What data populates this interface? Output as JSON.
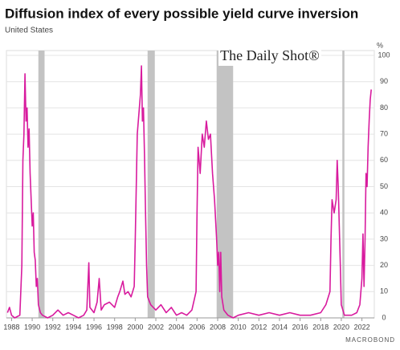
{
  "chart_data": {
    "type": "line",
    "title": "Diffusion index of every possible yield curve inversion",
    "subtitle": "United States",
    "y_unit": "%",
    "watermark": "The Daily Shot®",
    "source": "MACROBOND",
    "xlim": [
      1987.5,
      2023.2
    ],
    "xticks": [
      1988,
      1990,
      1992,
      1994,
      1996,
      1998,
      2000,
      2002,
      2004,
      2006,
      2008,
      2010,
      2012,
      2014,
      2016,
      2018,
      2020,
      2022
    ],
    "ylim": [
      0,
      100
    ],
    "yticks": [
      0,
      10,
      20,
      30,
      40,
      50,
      60,
      70,
      80,
      90,
      100
    ],
    "grid": true,
    "recessions": [
      [
        1990.6,
        1991.2
      ],
      [
        2001.2,
        2001.9
      ],
      [
        2007.9,
        2009.5
      ],
      [
        2020.1,
        2020.3
      ]
    ],
    "x": [
      1987.6,
      1987.8,
      1988,
      1988.3,
      1988.8,
      1989.0,
      1989.1,
      1989.2,
      1989.3,
      1989.4,
      1989.5,
      1989.6,
      1989.7,
      1989.8,
      1989.9,
      1990.0,
      1990.1,
      1990.2,
      1990.3,
      1990.4,
      1990.5,
      1990.6,
      1990.8,
      1991.0,
      1991.5,
      1992,
      1992.5,
      1993,
      1993.5,
      1994,
      1994.5,
      1995,
      1995.3,
      1995.5,
      1995.6,
      1996,
      1996.3,
      1996.5,
      1996.7,
      1997,
      1997.5,
      1998,
      1998.3,
      1998.5,
      1998.8,
      1999,
      1999.3,
      1999.6,
      1999.9,
      2000.0,
      2000.2,
      2000.4,
      2000.5,
      2000.6,
      2000.7,
      2000.8,
      2000.9,
      2001.0,
      2001.1,
      2001.2,
      2001.5,
      2002,
      2002.5,
      2003,
      2003.5,
      2004,
      2004.5,
      2005,
      2005.5,
      2005.9,
      2006.0,
      2006.1,
      2006.3,
      2006.5,
      2006.7,
      2006.9,
      2007.1,
      2007.3,
      2007.5,
      2007.7,
      2007.9,
      2008.0,
      2008.1,
      2008.2,
      2008.3,
      2008.4,
      2008.6,
      2009,
      2009.5,
      2010,
      2011,
      2012,
      2013,
      2014,
      2015,
      2016,
      2017,
      2018,
      2018.5,
      2018.9,
      2019.0,
      2019.1,
      2019.3,
      2019.5,
      2019.6,
      2019.7,
      2019.8,
      2019.9,
      2020.0,
      2020.3,
      2021,
      2021.5,
      2021.8,
      2022.0,
      2022.1,
      2022.2,
      2022.3,
      2022.4,
      2022.5,
      2022.6,
      2022.7,
      2022.8,
      2022.9
    ],
    "series": [
      {
        "name": "Diffusion index",
        "color": "#d81b9e",
        "values": [
          2,
          4,
          1,
          0,
          1,
          20,
          60,
          70,
          93,
          75,
          80,
          65,
          72,
          55,
          45,
          35,
          40,
          25,
          22,
          12,
          15,
          5,
          2,
          1,
          0,
          1,
          3,
          1,
          2,
          1,
          0,
          1,
          3,
          21,
          4,
          2,
          6,
          15,
          3,
          5,
          6,
          4,
          8,
          10,
          14,
          9,
          10,
          8,
          12,
          30,
          70,
          80,
          85,
          96,
          75,
          80,
          62,
          40,
          20,
          8,
          5,
          3,
          5,
          2,
          4,
          1,
          2,
          1,
          3,
          10,
          40,
          65,
          55,
          70,
          65,
          75,
          68,
          70,
          55,
          45,
          30,
          20,
          25,
          10,
          25,
          8,
          3,
          1,
          0,
          1,
          2,
          1,
          2,
          1,
          2,
          1,
          1,
          2,
          5,
          10,
          30,
          45,
          40,
          45,
          60,
          50,
          35,
          20,
          5,
          1,
          1,
          2,
          5,
          15,
          32,
          12,
          30,
          55,
          50,
          65,
          75,
          83,
          87
        ]
      }
    ]
  }
}
